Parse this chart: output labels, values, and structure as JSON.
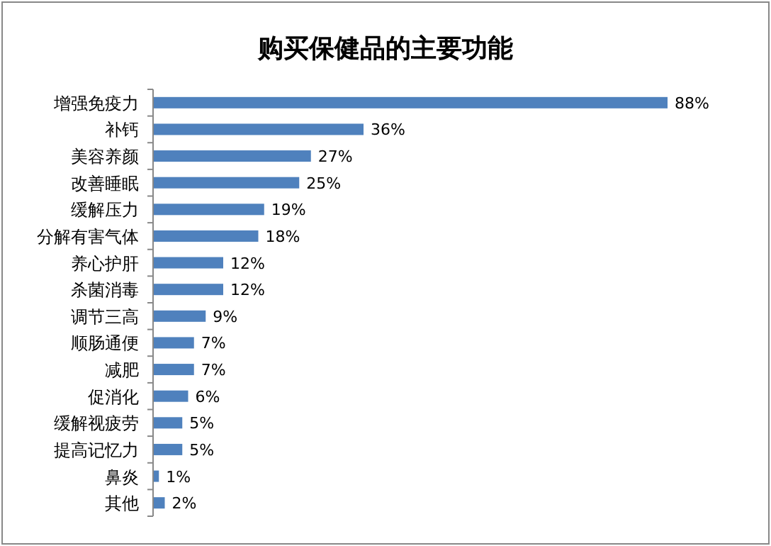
{
  "chart_data": {
    "type": "bar",
    "orientation": "horizontal",
    "title": "购买保健品的主要功能",
    "categories": [
      "增强免疫力",
      "补钙",
      "美容养颜",
      "改善睡眠",
      "缓解压力",
      "分解有害气体",
      "养心护肝",
      "杀菌消毒",
      "调节三高",
      "顺肠通便",
      "减肥",
      "促消化",
      "缓解视疲劳",
      "提高记忆力",
      "鼻炎",
      "其他"
    ],
    "values": [
      88,
      36,
      27,
      25,
      19,
      18,
      12,
      12,
      9,
      7,
      7,
      6,
      5,
      5,
      1,
      2
    ],
    "value_labels": [
      "88%",
      "36%",
      "27%",
      "25%",
      "19%",
      "18%",
      "12%",
      "12%",
      "9%",
      "7%",
      "7%",
      "6%",
      "5%",
      "5%",
      "1%",
      "2%"
    ],
    "color": "#4f81bd"
  }
}
